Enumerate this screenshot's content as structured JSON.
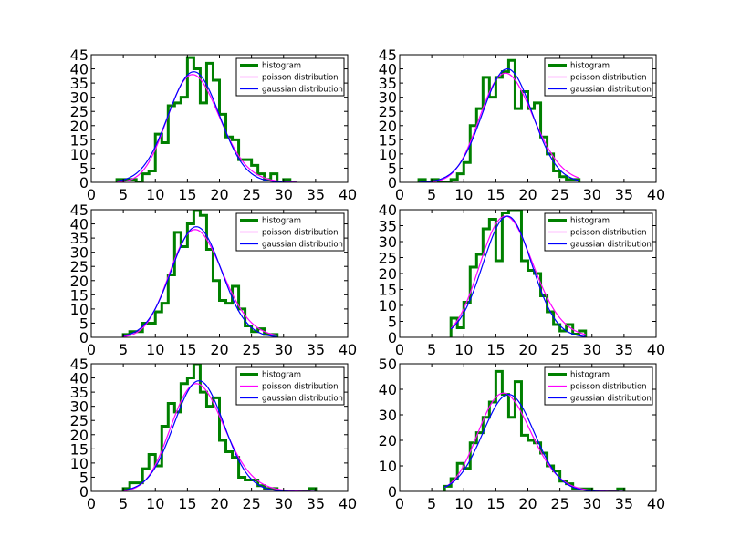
{
  "chart_data": [
    {
      "type": "histogram",
      "xlim": [
        0,
        40
      ],
      "ylim": [
        0,
        45
      ],
      "xticks": [
        0,
        5,
        10,
        15,
        20,
        25,
        30,
        35,
        40
      ],
      "yticks": [
        0,
        5,
        10,
        15,
        20,
        25,
        30,
        35,
        40,
        45
      ],
      "legend_position": "top-right",
      "series": [
        {
          "name": "histogram",
          "kind": "step",
          "color": "#008000",
          "bin_edges": [
            4,
            5,
            6,
            7,
            8,
            9,
            10,
            11,
            12,
            13,
            14,
            15,
            16,
            17,
            18,
            19,
            20,
            21,
            22,
            23,
            24,
            25,
            26,
            27,
            28,
            29,
            30,
            31,
            32
          ],
          "counts": [
            1,
            1,
            1,
            0,
            3,
            4,
            17,
            14,
            27,
            28,
            30,
            44,
            40,
            28,
            42,
            36,
            24,
            16,
            15,
            8,
            8,
            6,
            3,
            1,
            3,
            0,
            1,
            0
          ]
        },
        {
          "name": "poisson distribution",
          "kind": "curve",
          "color": "#ff00ff",
          "mean": 16.3,
          "peak": 38.0
        },
        {
          "name": "gaussian distribution",
          "kind": "curve",
          "color": "#0000ff",
          "mean": 16.0,
          "sigma": 4.0,
          "peak": 39.0
        }
      ]
    },
    {
      "type": "histogram",
      "xlim": [
        0,
        40
      ],
      "ylim": [
        0,
        45
      ],
      "xticks": [
        0,
        5,
        10,
        15,
        20,
        25,
        30,
        35,
        40
      ],
      "yticks": [
        0,
        5,
        10,
        15,
        20,
        25,
        30,
        35,
        40,
        45
      ],
      "legend_position": "top-right",
      "series": [
        {
          "name": "histogram",
          "kind": "step",
          "color": "#008000",
          "bin_edges": [
            3,
            4,
            5,
            6,
            7,
            8,
            9,
            10,
            11,
            12,
            13,
            14,
            15,
            16,
            17,
            18,
            19,
            20,
            21,
            22,
            23,
            24,
            25,
            26,
            27,
            28
          ],
          "counts": [
            1,
            0,
            1,
            0,
            0,
            1,
            3,
            7,
            20,
            26,
            37,
            30,
            37,
            39,
            43,
            26,
            32,
            26,
            28,
            16,
            10,
            4,
            2,
            1,
            1
          ]
        },
        {
          "name": "poisson distribution",
          "kind": "curve",
          "color": "#ff00ff",
          "mean": 17.0,
          "peak": 38.5
        },
        {
          "name": "gaussian distribution",
          "kind": "curve",
          "color": "#0000ff",
          "mean": 16.8,
          "sigma": 3.9,
          "peak": 40.0
        }
      ]
    },
    {
      "type": "histogram",
      "xlim": [
        0,
        40
      ],
      "ylim": [
        0,
        45
      ],
      "xticks": [
        0,
        5,
        10,
        15,
        20,
        25,
        30,
        35,
        40
      ],
      "yticks": [
        0,
        5,
        10,
        15,
        20,
        25,
        30,
        35,
        40,
        45
      ],
      "legend_position": "top-right",
      "series": [
        {
          "name": "histogram",
          "kind": "step",
          "color": "#008000",
          "bin_edges": [
            5,
            6,
            7,
            8,
            9,
            10,
            11,
            12,
            13,
            14,
            15,
            16,
            17,
            18,
            19,
            20,
            21,
            22,
            23,
            24,
            25,
            26,
            27,
            28,
            29
          ],
          "counts": [
            1,
            2,
            2,
            5,
            5,
            9,
            12,
            22,
            37,
            32,
            40,
            45,
            43,
            31,
            20,
            13,
            12,
            18,
            10,
            4,
            2,
            3,
            1,
            1
          ]
        },
        {
          "name": "poisson distribution",
          "kind": "curve",
          "color": "#ff00ff",
          "mean": 16.7,
          "peak": 38.0
        },
        {
          "name": "gaussian distribution",
          "kind": "curve",
          "color": "#0000ff",
          "mean": 16.4,
          "sigma": 3.9,
          "peak": 39.0
        }
      ]
    },
    {
      "type": "histogram",
      "xlim": [
        0,
        40
      ],
      "ylim": [
        0,
        40
      ],
      "xticks": [
        0,
        5,
        10,
        15,
        20,
        25,
        30,
        35,
        40
      ],
      "yticks": [
        0,
        5,
        10,
        15,
        20,
        25,
        30,
        35,
        40
      ],
      "legend_position": "top-right",
      "series": [
        {
          "name": "histogram",
          "kind": "step",
          "color": "#008000",
          "bin_edges": [
            8,
            9,
            10,
            11,
            12,
            13,
            14,
            15,
            16,
            17,
            18,
            19,
            20,
            21,
            22,
            23,
            24,
            25,
            26,
            27,
            28,
            29
          ],
          "counts": [
            6,
            3,
            11,
            22,
            26,
            34,
            37,
            24,
            39,
            40,
            40,
            24,
            21,
            20,
            13,
            8,
            4,
            2,
            4,
            1,
            2
          ]
        },
        {
          "name": "poisson distribution",
          "kind": "curve",
          "color": "#ff00ff",
          "mean": 17.0,
          "peak": 38.0
        },
        {
          "name": "gaussian distribution",
          "kind": "curve",
          "color": "#0000ff",
          "mean": 16.8,
          "sigma": 3.8,
          "peak": 38.0
        }
      ]
    },
    {
      "type": "histogram",
      "xlim": [
        0,
        40
      ],
      "ylim": [
        0,
        45
      ],
      "xticks": [
        0,
        5,
        10,
        15,
        20,
        25,
        30,
        35,
        40
      ],
      "yticks": [
        0,
        5,
        10,
        15,
        20,
        25,
        30,
        35,
        40,
        45
      ],
      "legend_position": "top-right",
      "series": [
        {
          "name": "histogram",
          "kind": "step",
          "color": "#008000",
          "bin_edges": [
            5,
            6,
            7,
            8,
            9,
            10,
            11,
            12,
            13,
            14,
            15,
            16,
            17,
            18,
            19,
            20,
            21,
            22,
            23,
            24,
            25,
            26,
            27,
            28,
            29,
            30,
            31,
            32,
            33,
            34,
            35
          ],
          "counts": [
            1,
            3,
            3,
            8,
            13,
            9,
            23,
            31,
            28,
            38,
            40,
            45,
            35,
            30,
            33,
            18,
            14,
            12,
            5,
            4,
            4,
            2,
            1,
            1,
            0,
            0,
            0,
            0,
            0,
            1
          ]
        },
        {
          "name": "poisson distribution",
          "kind": "curve",
          "color": "#ff00ff",
          "mean": 16.9,
          "peak": 38.0
        },
        {
          "name": "gaussian distribution",
          "kind": "curve",
          "color": "#0000ff",
          "mean": 16.8,
          "sigma": 3.9,
          "peak": 39.0
        }
      ]
    },
    {
      "type": "histogram",
      "xlim": [
        0,
        40
      ],
      "ylim": [
        0,
        50
      ],
      "xticks": [
        0,
        5,
        10,
        15,
        20,
        25,
        30,
        35,
        40
      ],
      "yticks": [
        0,
        10,
        20,
        30,
        40,
        50
      ],
      "legend_position": "top-right",
      "series": [
        {
          "name": "histogram",
          "kind": "step",
          "color": "#008000",
          "bin_edges": [
            7,
            8,
            9,
            10,
            11,
            12,
            13,
            14,
            15,
            16,
            17,
            18,
            19,
            20,
            21,
            22,
            23,
            24,
            25,
            26,
            27,
            28,
            29,
            30,
            31,
            32,
            33,
            34,
            35
          ],
          "counts": [
            2,
            5,
            11,
            9,
            19,
            23,
            29,
            35,
            47,
            38,
            29,
            43,
            22,
            20,
            19,
            15,
            10,
            8,
            4,
            3,
            1,
            1,
            1,
            0,
            0,
            0,
            0,
            1
          ]
        },
        {
          "name": "poisson distribution",
          "kind": "curve",
          "color": "#ff00ff",
          "mean": 16.7,
          "peak": 38.5
        },
        {
          "name": "gaussian distribution",
          "kind": "curve",
          "color": "#0000ff",
          "mean": 17.0,
          "sigma": 4.0,
          "peak": 38.0
        }
      ]
    }
  ]
}
